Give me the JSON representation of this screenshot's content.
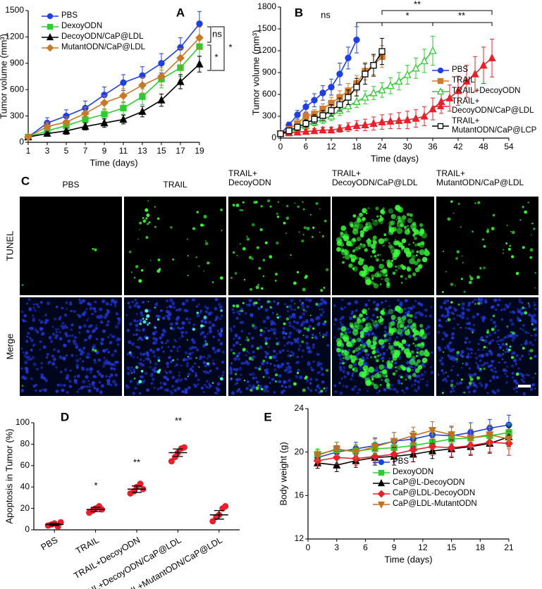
{
  "chart_data": [
    {
      "type": "line",
      "panel_label": "A",
      "xlabel": "Time (days)",
      "ylabel": "Tumor volume (mm³)",
      "x": [
        1,
        3,
        5,
        7,
        9,
        11,
        13,
        15,
        17,
        19
      ],
      "xlim": [
        1,
        19
      ],
      "xticks": [
        1,
        3,
        5,
        7,
        9,
        11,
        13,
        15,
        17,
        19
      ],
      "ylim": [
        0,
        1500
      ],
      "yticks": [
        0,
        300,
        600,
        900,
        1200,
        1500
      ],
      "legend": "upper left",
      "series": [
        {
          "name": "PBS",
          "color": "#1f3fe0",
          "marker": "circle",
          "filled": true,
          "values": [
            60,
            220,
            300,
            390,
            540,
            680,
            760,
            900,
            1080,
            1350
          ],
          "errors": [
            10,
            60,
            70,
            80,
            90,
            90,
            100,
            110,
            110,
            140
          ]
        },
        {
          "name": "DexoyODN",
          "color": "#2ecc2e",
          "marker": "square",
          "filled": true,
          "values": [
            60,
            130,
            190,
            260,
            320,
            390,
            520,
            720,
            850,
            1090
          ],
          "errors": [
            10,
            40,
            50,
            60,
            60,
            70,
            90,
            100,
            100,
            110
          ]
        },
        {
          "name": "DecoyODN/CaP@LDL",
          "color": "#000000",
          "marker": "triangle",
          "filled": true,
          "values": [
            60,
            100,
            130,
            180,
            220,
            260,
            350,
            480,
            690,
            890
          ],
          "errors": [
            10,
            30,
            40,
            40,
            50,
            50,
            60,
            70,
            80,
            90
          ]
        },
        {
          "name": "MutantODN/CaP@LDL",
          "color": "#c8782a",
          "marker": "diamond",
          "filled": true,
          "values": [
            60,
            180,
            230,
            330,
            450,
            530,
            650,
            750,
            960,
            1190
          ],
          "errors": [
            10,
            50,
            60,
            70,
            80,
            80,
            90,
            100,
            110,
            120
          ]
        }
      ],
      "annotations": [
        "ns",
        "*",
        "*"
      ]
    },
    {
      "type": "line",
      "panel_label": "B",
      "xlabel": "Time (days)",
      "ylabel": "Tumor volume (mm³)",
      "xlim": [
        0,
        54
      ],
      "xticks": [
        0,
        6,
        12,
        18,
        24,
        30,
        36,
        42,
        48,
        54
      ],
      "ylim": [
        0,
        1800
      ],
      "yticks": [
        0,
        300,
        600,
        900,
        1200,
        1500,
        1800
      ],
      "legend": "right",
      "series": [
        {
          "name": "PBS",
          "color": "#1f3fe0",
          "marker": "circle",
          "filled": true,
          "x": [
            0,
            2,
            4,
            6,
            8,
            10,
            12,
            14,
            16,
            18
          ],
          "values": [
            60,
            180,
            320,
            430,
            520,
            620,
            700,
            880,
            1100,
            1350
          ],
          "errors": [
            10,
            40,
            60,
            80,
            90,
            100,
            110,
            150,
            150,
            180
          ]
        },
        {
          "name": "TRAIL",
          "color": "#d07a2a",
          "marker": "square",
          "filled": true,
          "x": [
            0,
            2,
            4,
            6,
            8,
            10,
            12,
            14,
            16,
            18,
            20,
            22,
            24
          ],
          "values": [
            60,
            120,
            200,
            300,
            330,
            400,
            480,
            560,
            650,
            750,
            920,
            1000,
            1120
          ],
          "errors": [
            10,
            30,
            40,
            60,
            60,
            70,
            80,
            90,
            100,
            110,
            120,
            130,
            150
          ]
        },
        {
          "name": "TRAIL+DecoyODN",
          "color": "#2ecc2e",
          "marker": "triangle",
          "filled": false,
          "x": [
            0,
            2,
            4,
            6,
            8,
            10,
            12,
            14,
            16,
            18,
            20,
            22,
            24,
            26,
            28,
            30,
            32,
            34,
            36
          ],
          "values": [
            60,
            80,
            120,
            170,
            220,
            260,
            300,
            380,
            440,
            500,
            560,
            620,
            660,
            720,
            780,
            870,
            960,
            1060,
            1200
          ],
          "errors": [
            10,
            20,
            30,
            40,
            50,
            60,
            60,
            70,
            80,
            80,
            90,
            90,
            100,
            110,
            120,
            130,
            140,
            160,
            200
          ]
        },
        {
          "name": "TRAIL+\nDecoyODN/CaP@LDL",
          "color": "#e8202a",
          "marker": "triangle",
          "filled": true,
          "x": [
            0,
            2,
            4,
            6,
            8,
            10,
            12,
            14,
            16,
            18,
            20,
            22,
            24,
            26,
            28,
            30,
            32,
            34,
            36,
            38,
            40,
            42,
            44,
            46,
            48,
            50
          ],
          "values": [
            60,
            70,
            80,
            90,
            100,
            110,
            110,
            130,
            150,
            170,
            180,
            200,
            220,
            230,
            240,
            250,
            270,
            300,
            400,
            500,
            550,
            650,
            780,
            880,
            1000,
            1100
          ],
          "errors": [
            10,
            20,
            20,
            30,
            30,
            40,
            40,
            50,
            60,
            70,
            80,
            90,
            100,
            100,
            110,
            120,
            120,
            130,
            150,
            160,
            180,
            200,
            220,
            240,
            250,
            260
          ]
        },
        {
          "name": "TRAIL+\nMutantODN/CaP@LCP",
          "color": "#000000",
          "marker": "square",
          "filled": false,
          "x": [
            0,
            2,
            4,
            6,
            8,
            10,
            12,
            14,
            16,
            18,
            20,
            22,
            24
          ],
          "values": [
            60,
            100,
            150,
            200,
            260,
            310,
            380,
            460,
            560,
            700,
            880,
            1000,
            1190
          ],
          "errors": [
            10,
            30,
            40,
            50,
            60,
            70,
            80,
            90,
            100,
            120,
            140,
            150,
            180
          ]
        }
      ],
      "annotations": [
        "ns",
        "**",
        "*",
        "**"
      ]
    },
    {
      "type": "strip",
      "panel_label": "D",
      "ylabel": "Apoptosis in Tumor (%)",
      "categories": [
        "PBS",
        "TRAIL",
        "TRAIL+DecoyODN",
        "TRAIL+DecoyODN/CaP@LDL",
        "TRAIL+MutantODN/CaP@LDL"
      ],
      "ylim": [
        0,
        100
      ],
      "yticks": [
        0,
        20,
        40,
        60,
        80,
        100
      ],
      "color": "#e8202a",
      "points": [
        [
          4,
          5,
          6,
          3,
          7
        ],
        [
          16,
          18,
          20,
          22,
          19
        ],
        [
          34,
          36,
          40,
          43,
          38
        ],
        [
          64,
          68,
          72,
          76,
          77
        ],
        [
          8,
          12,
          14,
          20,
          22
        ]
      ],
      "means": [
        5,
        19,
        38,
        72,
        14
      ],
      "errors": [
        1,
        2,
        3,
        3.5,
        4
      ],
      "annotations": [
        "*",
        "**",
        "**"
      ]
    },
    {
      "type": "line",
      "panel_label": "E",
      "xlabel": "Time (days)",
      "ylabel": "Body weight (g)",
      "x": [
        1,
        3,
        5,
        7,
        9,
        11,
        13,
        15,
        17,
        19,
        21
      ],
      "xlim": [
        0,
        21
      ],
      "xticks": [
        0,
        3,
        6,
        9,
        12,
        15,
        18,
        21
      ],
      "ylim": [
        12,
        24
      ],
      "yticks": [
        12,
        16,
        20,
        24
      ],
      "legend": "lower center",
      "series": [
        {
          "name": "PBS",
          "color": "#1f3fe0",
          "marker": "circle",
          "filled": true,
          "values": [
            19.5,
            20,
            20.3,
            20.6,
            21,
            21.2,
            21.6,
            21.5,
            21.8,
            22.2,
            22.5
          ],
          "errors": [
            0.5,
            0.6,
            0.6,
            0.7,
            0.8,
            0.7,
            0.6,
            0.8,
            0.9,
            0.8,
            0.9
          ]
        },
        {
          "name": "DexoyODN",
          "color": "#2ecc2e",
          "marker": "square",
          "filled": true,
          "values": [
            19.8,
            20.2,
            20.1,
            20.3,
            20.4,
            20.6,
            20.9,
            21.2,
            21.3,
            21.5,
            21.8
          ],
          "errors": [
            0.5,
            0.7,
            0.6,
            0.6,
            0.6,
            0.7,
            0.7,
            0.7,
            0.8,
            0.8,
            0.8
          ]
        },
        {
          "name": "CaP@L-DecoyODN",
          "color": "#000000",
          "marker": "triangle",
          "filled": true,
          "values": [
            19,
            18.8,
            19.2,
            19.5,
            19.6,
            19.8,
            20.1,
            20.3,
            20.5,
            20.8,
            21.4
          ],
          "errors": [
            0.5,
            0.6,
            0.6,
            0.7,
            0.8,
            0.7,
            0.7,
            0.8,
            0.8,
            0.9,
            0.9
          ]
        },
        {
          "name": "CaP@LDL-DecoyODN",
          "color": "#e8202a",
          "marker": "diamond",
          "filled": true,
          "values": [
            19.2,
            19.5,
            19.4,
            19.6,
            19.8,
            20.2,
            20.5,
            20.4,
            20.6,
            20.9,
            20.8
          ],
          "errors": [
            0.5,
            0.6,
            0.6,
            0.6,
            0.7,
            0.7,
            0.8,
            0.8,
            0.8,
            0.9,
            1.1
          ]
        },
        {
          "name": "CaP@LDL-MutantODN",
          "color": "#c0701f",
          "marker": "triangle-down",
          "filled": true,
          "values": [
            19.7,
            20.3,
            20,
            20.5,
            21,
            21.5,
            22,
            21.6,
            21.3,
            21.6,
            21.2
          ],
          "errors": [
            0.5,
            0.6,
            0.6,
            0.7,
            0.8,
            0.8,
            0.8,
            0.8,
            0.8,
            0.9,
            0.9
          ]
        }
      ]
    }
  ],
  "panel_c": {
    "label": "C",
    "columns": [
      "PBS",
      "TRAIL",
      "TRAIL+\nDecoyODN",
      "TRAIL+\nDecoyODN/CaP@LDL",
      "TRAIL+\nMutantODN/CaP@LDL"
    ],
    "rows": [
      "TUNEL",
      "Merge"
    ]
  }
}
